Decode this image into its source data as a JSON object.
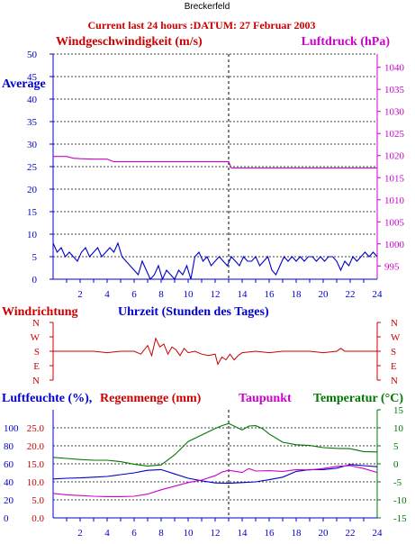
{
  "station": "Breckerfeld",
  "header": "Current last 24 hours :DATUM: 27 Februar 2003",
  "colors": {
    "wind": "#0000cc",
    "pressure": "#cc00cc",
    "direction": "#cc0000",
    "humidity": "#0000cc",
    "rain": "#cc0000",
    "dewpoint": "#cc00cc",
    "temperature": "#007700",
    "axis_blue": "#0000cc",
    "axis_magenta": "#cc00cc",
    "axis_red": "#cc0000",
    "axis_green": "#007700",
    "grid": "#000000"
  },
  "labels": {
    "wind_title": "Windgeschwindigkeit (m/s)",
    "pressure_title": "Luftdruck (hPa)",
    "average": "Average",
    "dir_title": "Windrichtung",
    "time_title": "Uhrzeit (Stunden des Tages)",
    "humidity_title": "Luftfeuchte (%),",
    "rain_title": "Regenmenge (mm)",
    "dew_title": "Taupunkt",
    "temp_title": "Temperatur (°C)"
  },
  "chart_data": [
    {
      "type": "line",
      "name": "wind-pressure",
      "x_ticks": [
        2,
        4,
        6,
        8,
        10,
        12,
        14,
        16,
        18,
        20,
        22,
        24
      ],
      "xlim": [
        0,
        24
      ],
      "left_axis": {
        "label": "Windgeschwindigkeit (m/s)",
        "ylim": [
          0,
          50
        ],
        "ticks": [
          0,
          5,
          10,
          15,
          20,
          25,
          30,
          35,
          40,
          45,
          50
        ]
      },
      "right_axis": {
        "label": "Luftdruck (hPa)",
        "ylim": [
          992,
          1043
        ],
        "ticks": [
          995,
          1000,
          1005,
          1010,
          1015,
          1020,
          1025,
          1030,
          1035,
          1040
        ]
      },
      "grid": true,
      "marker_hour": 13,
      "series": [
        {
          "axis": "left",
          "color_key": "wind",
          "x": [
            0.0,
            0.3,
            0.6,
            0.9,
            1.2,
            1.5,
            1.8,
            2.1,
            2.4,
            2.7,
            3.0,
            3.3,
            3.6,
            3.9,
            4.2,
            4.5,
            4.8,
            5.1,
            5.4,
            5.7,
            6.0,
            6.3,
            6.6,
            6.9,
            7.2,
            7.5,
            7.8,
            8.1,
            8.4,
            8.7,
            9.0,
            9.3,
            9.6,
            9.9,
            10.2,
            10.5,
            10.8,
            11.1,
            11.4,
            11.7,
            12.0,
            12.3,
            12.6,
            12.9,
            13.2,
            13.5,
            13.8,
            14.1,
            14.4,
            14.7,
            15.0,
            15.3,
            15.6,
            15.9,
            16.2,
            16.5,
            16.8,
            17.1,
            17.4,
            17.7,
            18.0,
            18.3,
            18.6,
            18.9,
            19.2,
            19.5,
            19.8,
            20.1,
            20.4,
            20.7,
            21.0,
            21.3,
            21.6,
            21.9,
            22.2,
            22.5,
            22.8,
            23.1,
            23.4,
            23.7,
            24.0
          ],
          "y": [
            8,
            6,
            7,
            5,
            6,
            5,
            4,
            6,
            7,
            5,
            6,
            7,
            5,
            6,
            7,
            6,
            8,
            5,
            4,
            3,
            2,
            1,
            4,
            2,
            0,
            1,
            3,
            0,
            2,
            1,
            0,
            2,
            1,
            3,
            0,
            5,
            6,
            4,
            5,
            3,
            4,
            5,
            4,
            3,
            5,
            4,
            3,
            5,
            4,
            4,
            5,
            3,
            4,
            5,
            2,
            1,
            3,
            5,
            4,
            5,
            4,
            5,
            4,
            5,
            5,
            4,
            5,
            4,
            5,
            5,
            4,
            2,
            4,
            3,
            5,
            4,
            5,
            6,
            5,
            6,
            5
          ]
        },
        {
          "axis": "right",
          "color_key": "pressure",
          "x": [
            0,
            1,
            1.5,
            2,
            3,
            4,
            4.5,
            5,
            6,
            7,
            8,
            9,
            10,
            11,
            12,
            13,
            13.2,
            14,
            15,
            16,
            17,
            18,
            19,
            20,
            21,
            22,
            23,
            24
          ],
          "y": [
            1019.8,
            1019.8,
            1019.4,
            1019.3,
            1019.2,
            1019.2,
            1018.6,
            1018.6,
            1018.6,
            1018.6,
            1018.6,
            1018.6,
            1018.6,
            1018.6,
            1018.6,
            1018.6,
            1017.2,
            1017.2,
            1017.2,
            1017.2,
            1017.2,
            1017.2,
            1017.2,
            1017.2,
            1017.2,
            1017.2,
            1017.2,
            1017.2
          ]
        }
      ]
    },
    {
      "type": "line",
      "name": "wind-direction",
      "y_categories": [
        "N",
        "W",
        "S",
        "E",
        "N"
      ],
      "xlim": [
        0,
        24
      ],
      "series": [
        {
          "color_key": "direction",
          "x": [
            0,
            1,
            2,
            3,
            4,
            5,
            6,
            6.5,
            7,
            7.3,
            7.6,
            7.9,
            8.2,
            8.5,
            8.8,
            9.1,
            9.4,
            9.7,
            10,
            10.5,
            11,
            11.5,
            12,
            12.2,
            12.5,
            12.8,
            13.1,
            13.4,
            13.7,
            14,
            15,
            16,
            17,
            18,
            19,
            20,
            21,
            21.3,
            21.6,
            22,
            23,
            24
          ],
          "y": [
            2.0,
            2.0,
            2.0,
            2.0,
            2.1,
            2.0,
            2.0,
            2.2,
            1.6,
            2.3,
            1.1,
            1.7,
            1.5,
            2.2,
            1.7,
            1.9,
            2.3,
            1.8,
            2.1,
            2.0,
            2.2,
            2.3,
            2.2,
            2.9,
            2.4,
            2.6,
            2.2,
            2.6,
            2.3,
            2.1,
            2.0,
            2.1,
            2.0,
            2.0,
            2.0,
            2.1,
            2.0,
            1.8,
            2.0,
            2.0,
            2.0,
            2.0
          ]
        }
      ]
    },
    {
      "type": "line",
      "name": "humidity-rain-dewpoint-temperature",
      "xlim": [
        0,
        24
      ],
      "x_ticks": [
        2,
        4,
        6,
        8,
        10,
        12,
        14,
        16,
        18,
        20,
        22,
        24
      ],
      "left_axis_humidity": {
        "ticks": [
          0,
          20,
          40,
          60,
          80,
          100
        ]
      },
      "left_axis_rain": {
        "ticks": [
          "0.0",
          "5.0",
          "10.0",
          "15.0",
          "20.0",
          "25.0"
        ]
      },
      "right_axis_temperature": {
        "ylim": [
          -15,
          15
        ],
        "ticks": [
          -15,
          -10,
          -5,
          0,
          5,
          10,
          15
        ]
      },
      "grid": true,
      "marker_hour": 13,
      "series": [
        {
          "axis": "temperature",
          "color_key": "temperature",
          "x": [
            0,
            1,
            2,
            3,
            4,
            5,
            6,
            7,
            8,
            9,
            10,
            11,
            12,
            12.5,
            13,
            13.5,
            14,
            14.5,
            15,
            15.5,
            16,
            17,
            18,
            19,
            20,
            21,
            22,
            23,
            24
          ],
          "y": [
            1.8,
            1.5,
            1.2,
            1.0,
            1.0,
            0.6,
            -0.1,
            -0.6,
            -0.3,
            2.5,
            6.2,
            8.0,
            9.8,
            10.6,
            11.2,
            10.3,
            9.4,
            10.5,
            10.6,
            9.8,
            8.3,
            6.0,
            5.3,
            5.1,
            4.5,
            4.3,
            4.2,
            3.4,
            3.3
          ]
        },
        {
          "axis": "temperature",
          "color_key": "humidity",
          "x": [
            0,
            1,
            2,
            3,
            4,
            5,
            6,
            7,
            8,
            9,
            10,
            11,
            12,
            13,
            14,
            15,
            16,
            17,
            18,
            19,
            20,
            21,
            22,
            23,
            24
          ],
          "y": [
            -4.2,
            -4.0,
            -3.9,
            -3.7,
            -3.5,
            -3.0,
            -2.5,
            -1.8,
            -1.6,
            -2.8,
            -4.0,
            -4.7,
            -5.3,
            -5.4,
            -5.2,
            -5.0,
            -4.4,
            -3.7,
            -2.1,
            -1.6,
            -1.6,
            -1.2,
            -0.2,
            -0.5,
            -0.8
          ]
        },
        {
          "axis": "temperature",
          "color_key": "dewpoint",
          "x": [
            0,
            1,
            2,
            3,
            4,
            5,
            6,
            7,
            8,
            9,
            10,
            11,
            12,
            12.5,
            13,
            14,
            14.5,
            15,
            16,
            17,
            18,
            19,
            20,
            21,
            22,
            23,
            24
          ],
          "y": [
            -8.2,
            -8.6,
            -8.8,
            -9.0,
            -9.1,
            -9.1,
            -9.0,
            -8.4,
            -7.2,
            -6.2,
            -5.2,
            -4.5,
            -3.3,
            -2.3,
            -1.8,
            -2.4,
            -1.3,
            -2.0,
            -1.9,
            -2.1,
            -1.6,
            -1.7,
            -1.3,
            -0.7,
            -0.5,
            -1.3,
            -2.4
          ]
        }
      ]
    }
  ]
}
